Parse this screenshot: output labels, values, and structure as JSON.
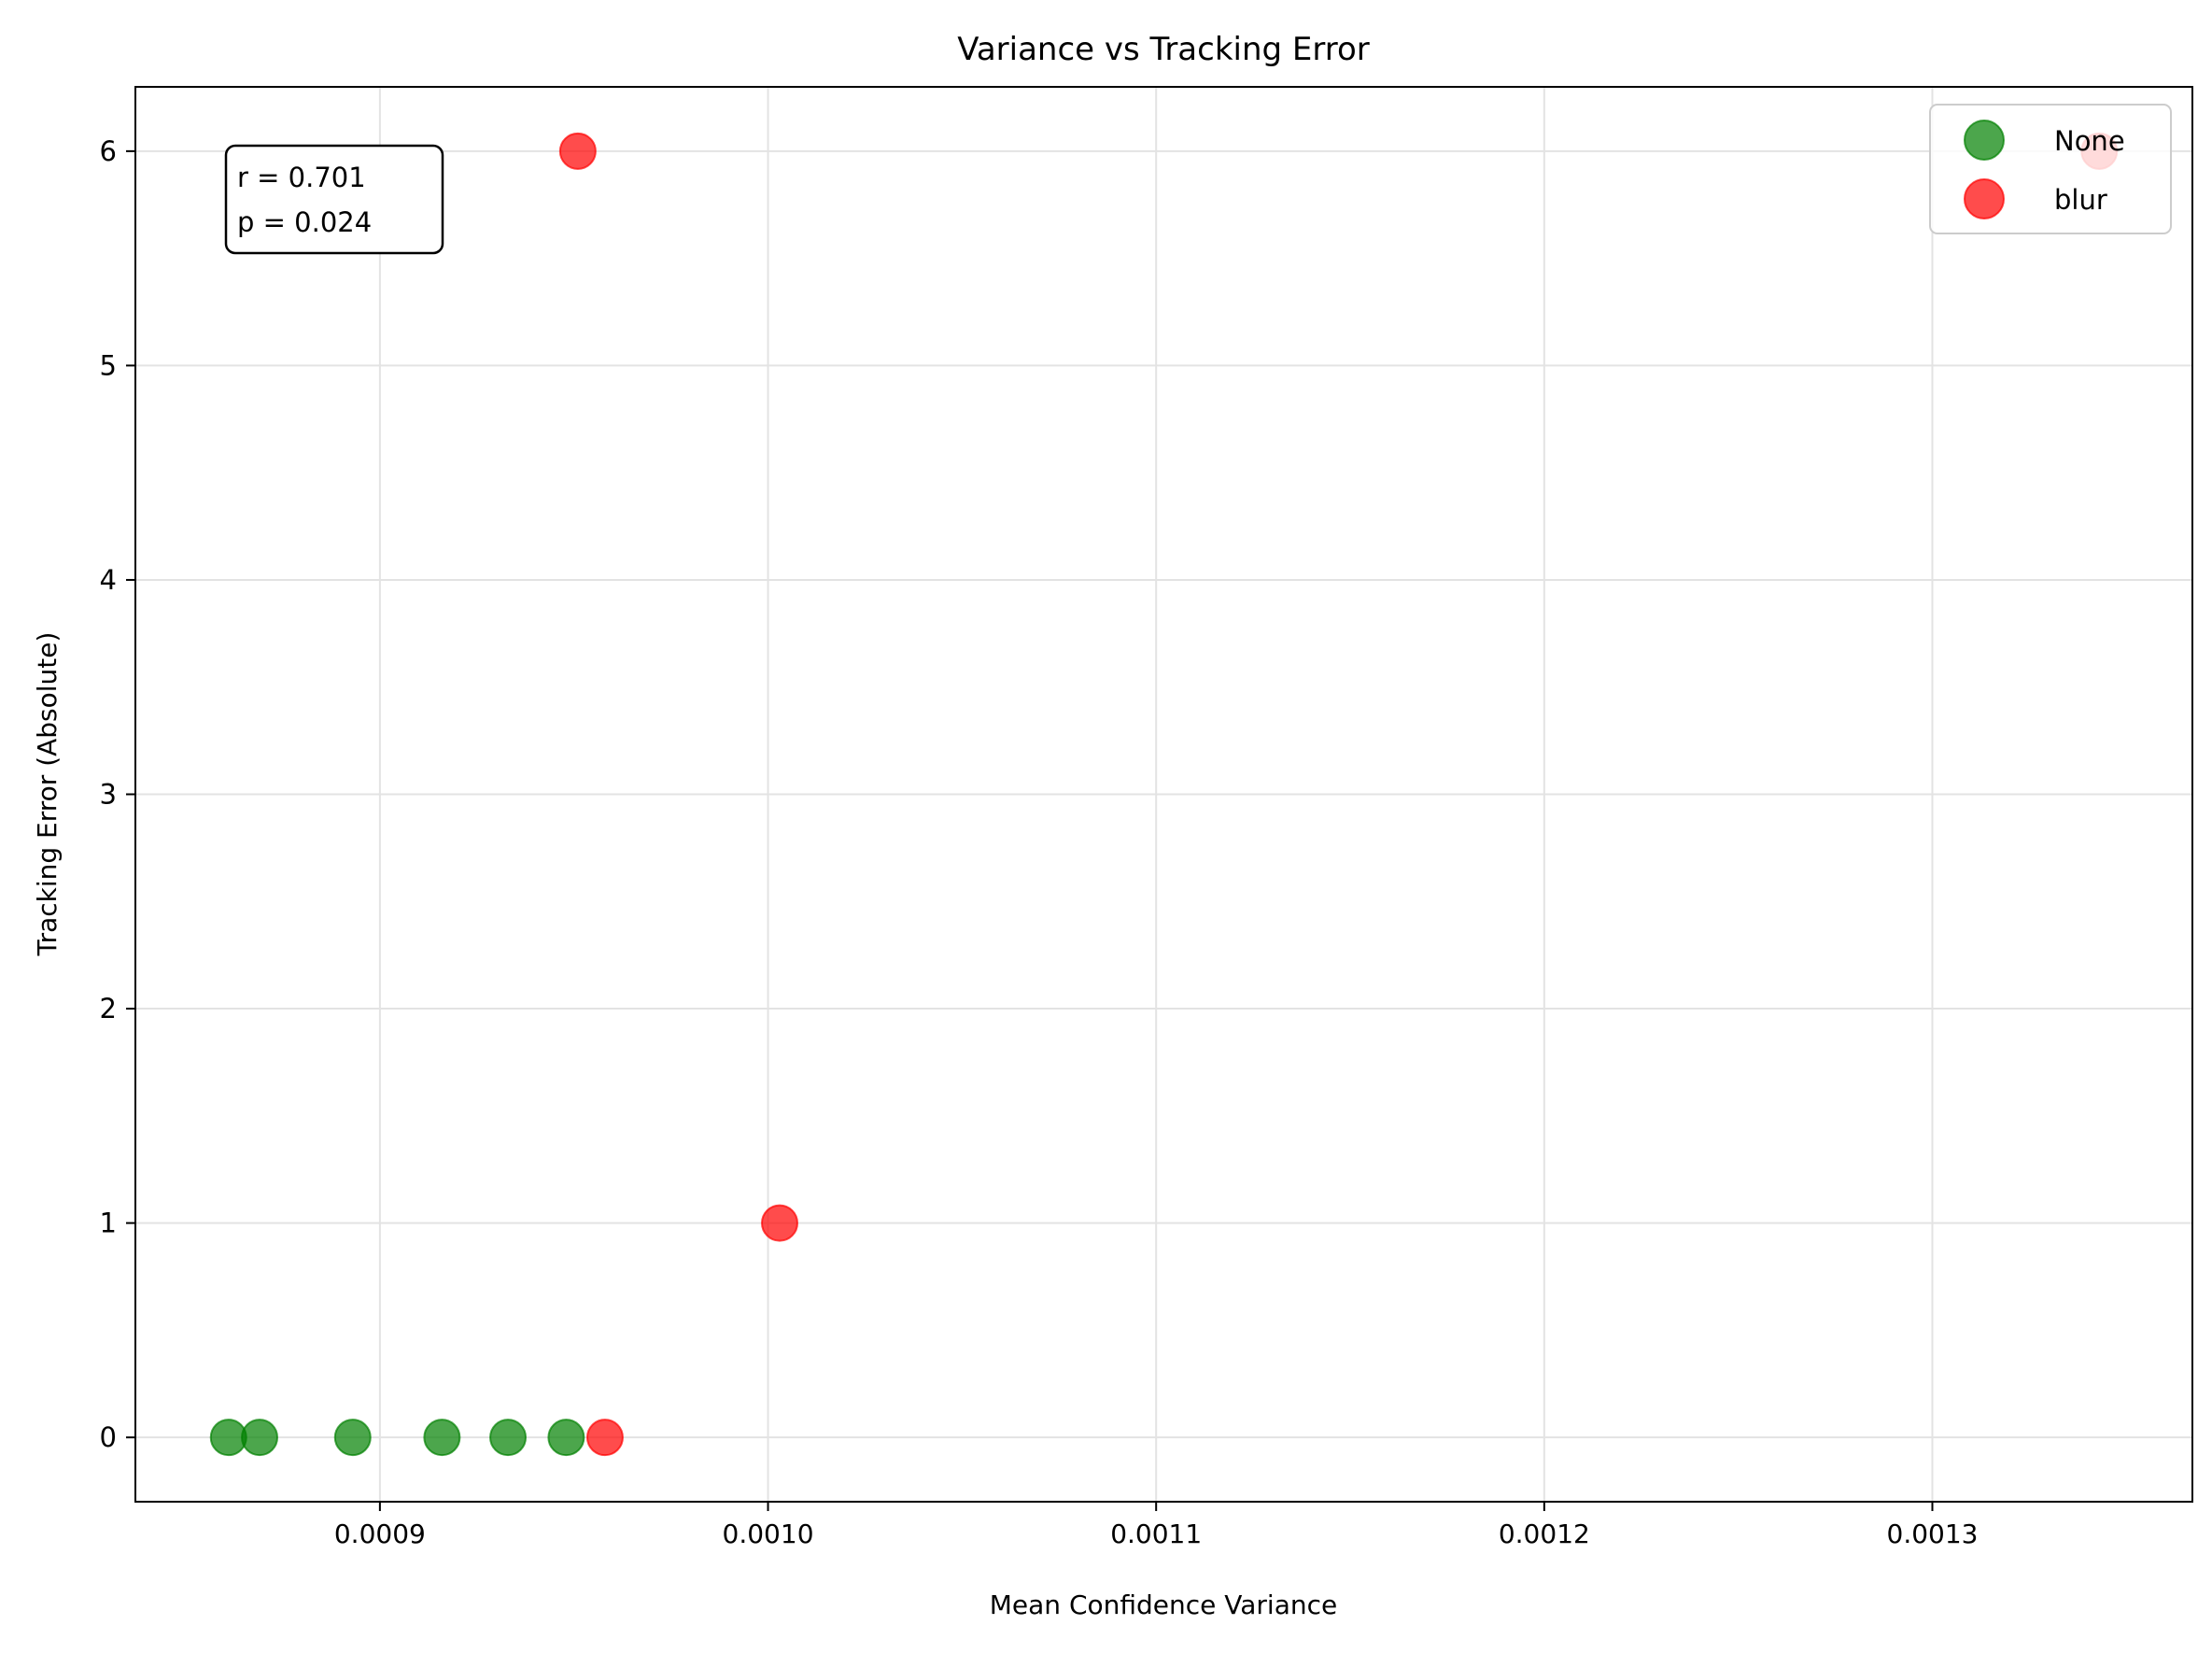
{
  "chart_data": {
    "type": "scatter",
    "title": "Variance vs Tracking Error",
    "xlabel": "Mean Confidence Variance",
    "ylabel": "Tracking Error (Absolute)",
    "xlim": [
      0.000837,
      0.001367
    ],
    "ylim": [
      -0.3,
      6.3
    ],
    "xticks": [
      0.0009,
      0.001,
      0.0011,
      0.0012,
      0.0013
    ],
    "xtick_labels": [
      "0.0009",
      "0.0010",
      "0.0011",
      "0.0012",
      "0.0013"
    ],
    "yticks": [
      0,
      1,
      2,
      3,
      4,
      5,
      6
    ],
    "ytick_labels": [
      "0",
      "1",
      "2",
      "3",
      "4",
      "5",
      "6"
    ],
    "grid": true,
    "legend_position": "top-right",
    "series": [
      {
        "name": "None",
        "color": "#008000",
        "points": [
          {
            "x": 0.000861,
            "y": 0
          },
          {
            "x": 0.000869,
            "y": 0
          },
          {
            "x": 0.000893,
            "y": 0
          },
          {
            "x": 0.000916,
            "y": 0
          },
          {
            "x": 0.000933,
            "y": 0
          },
          {
            "x": 0.000948,
            "y": 0
          }
        ]
      },
      {
        "name": "blur",
        "color": "#ff0000",
        "points": [
          {
            "x": 0.000951,
            "y": 6
          },
          {
            "x": 0.000958,
            "y": 0
          },
          {
            "x": 0.001003,
            "y": 1
          },
          {
            "x": 0.001343,
            "y": 6
          }
        ]
      }
    ],
    "annotation": {
      "r_text": "r = 0.701",
      "p_text": "p = 0.024"
    }
  }
}
